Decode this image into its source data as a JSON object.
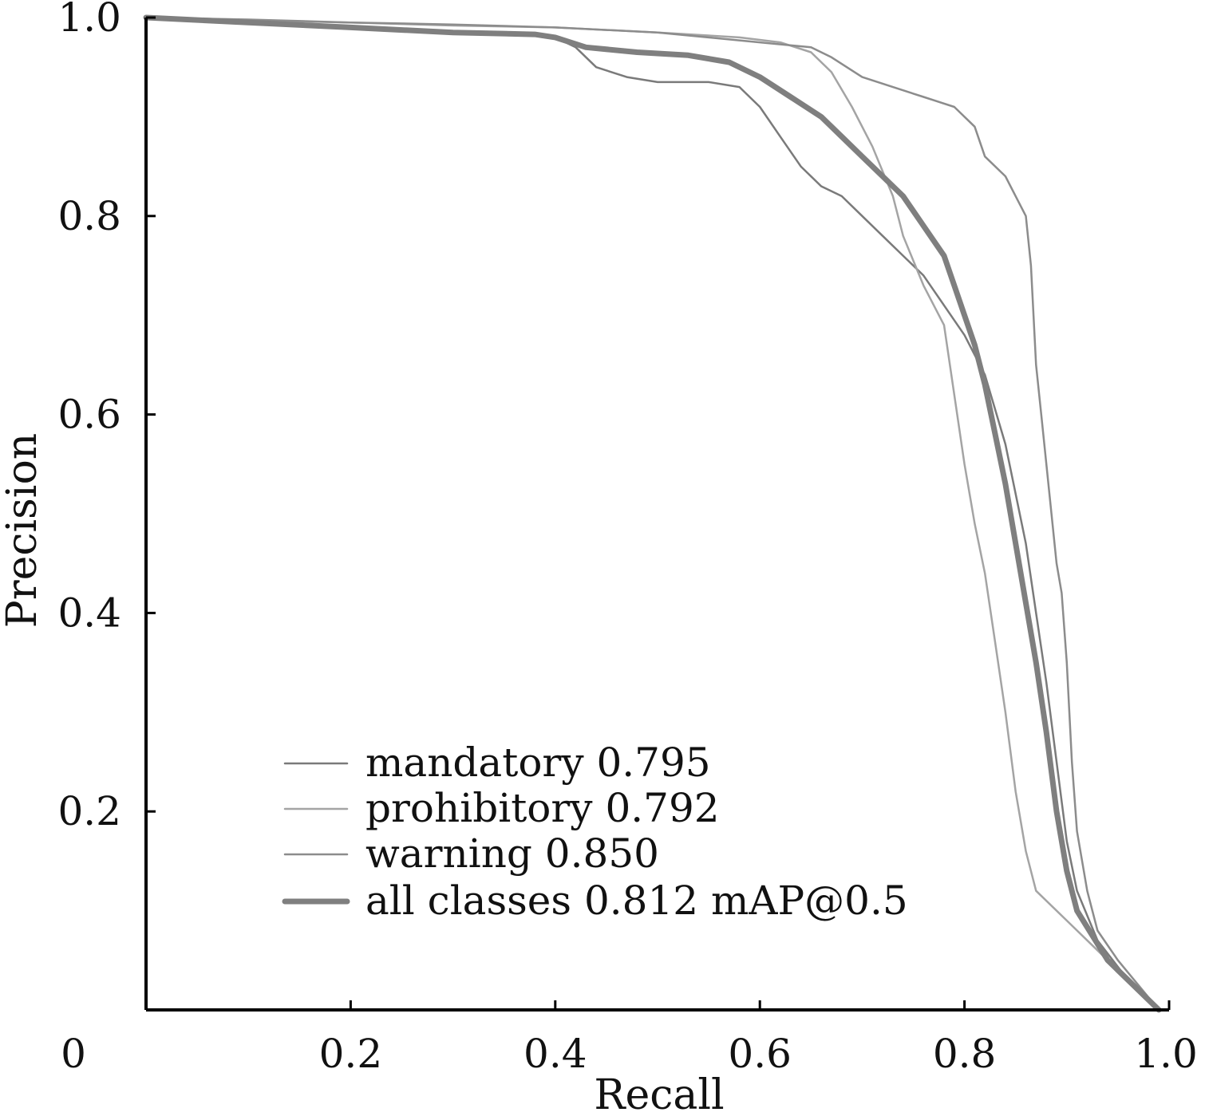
{
  "chart_data": {
    "type": "line",
    "xlabel": "Recall",
    "ylabel": "Precision",
    "xlim": [
      0,
      1.0
    ],
    "ylim": [
      0,
      1.0
    ],
    "x_ticks": [
      {
        "value": 0,
        "label": "0"
      },
      {
        "value": 0.2,
        "label": "0.2"
      },
      {
        "value": 0.4,
        "label": "0.4"
      },
      {
        "value": 0.6,
        "label": "0.6"
      },
      {
        "value": 0.8,
        "label": "0.8"
      },
      {
        "value": 1.0,
        "label": "1.0"
      }
    ],
    "y_ticks": [
      {
        "value": 0.2,
        "label": "0.2"
      },
      {
        "value": 0.4,
        "label": "0.4"
      },
      {
        "value": 0.6,
        "label": "0.6"
      },
      {
        "value": 0.8,
        "label": "0.8"
      },
      {
        "value": 1.0,
        "label": "1.0"
      }
    ],
    "grid": false,
    "legend_position": "bottom-left",
    "series": [
      {
        "name": "mandatory 0.795",
        "color": "#7a7a7a",
        "width": 2.5,
        "points": [
          [
            0.0,
            1.0
          ],
          [
            0.05,
            0.996
          ],
          [
            0.1,
            0.995
          ],
          [
            0.2,
            0.99
          ],
          [
            0.3,
            0.985
          ],
          [
            0.38,
            0.983
          ],
          [
            0.4,
            0.98
          ],
          [
            0.42,
            0.97
          ],
          [
            0.44,
            0.95
          ],
          [
            0.47,
            0.94
          ],
          [
            0.5,
            0.935
          ],
          [
            0.55,
            0.935
          ],
          [
            0.58,
            0.93
          ],
          [
            0.6,
            0.91
          ],
          [
            0.62,
            0.88
          ],
          [
            0.64,
            0.85
          ],
          [
            0.66,
            0.83
          ],
          [
            0.68,
            0.82
          ],
          [
            0.7,
            0.8
          ],
          [
            0.72,
            0.78
          ],
          [
            0.74,
            0.76
          ],
          [
            0.76,
            0.74
          ],
          [
            0.78,
            0.71
          ],
          [
            0.8,
            0.68
          ],
          [
            0.82,
            0.64
          ],
          [
            0.84,
            0.57
          ],
          [
            0.86,
            0.47
          ],
          [
            0.87,
            0.4
          ],
          [
            0.88,
            0.33
          ],
          [
            0.89,
            0.25
          ],
          [
            0.9,
            0.17
          ],
          [
            0.91,
            0.12
          ],
          [
            0.93,
            0.07
          ],
          [
            0.96,
            0.03
          ],
          [
            0.99,
            0.0
          ]
        ]
      },
      {
        "name": "prohibitory 0.792",
        "color": "#a4a4a4",
        "width": 2.5,
        "points": [
          [
            0.0,
            1.0
          ],
          [
            0.1,
            0.997
          ],
          [
            0.2,
            0.995
          ],
          [
            0.3,
            0.992
          ],
          [
            0.4,
            0.99
          ],
          [
            0.5,
            0.985
          ],
          [
            0.58,
            0.98
          ],
          [
            0.62,
            0.975
          ],
          [
            0.65,
            0.965
          ],
          [
            0.67,
            0.945
          ],
          [
            0.69,
            0.91
          ],
          [
            0.71,
            0.87
          ],
          [
            0.73,
            0.82
          ],
          [
            0.74,
            0.78
          ],
          [
            0.76,
            0.73
          ],
          [
            0.78,
            0.69
          ],
          [
            0.79,
            0.62
          ],
          [
            0.8,
            0.55
          ],
          [
            0.81,
            0.49
          ],
          [
            0.82,
            0.44
          ],
          [
            0.83,
            0.37
          ],
          [
            0.84,
            0.3
          ],
          [
            0.85,
            0.22
          ],
          [
            0.86,
            0.16
          ],
          [
            0.87,
            0.12
          ],
          [
            0.9,
            0.09
          ],
          [
            0.94,
            0.05
          ],
          [
            0.99,
            0.0
          ]
        ]
      },
      {
        "name": "warning 0.850",
        "color": "#8c8c8c",
        "width": 2.5,
        "points": [
          [
            0.0,
            1.0
          ],
          [
            0.1,
            0.998
          ],
          [
            0.2,
            0.995
          ],
          [
            0.3,
            0.993
          ],
          [
            0.4,
            0.99
          ],
          [
            0.5,
            0.985
          ],
          [
            0.6,
            0.975
          ],
          [
            0.65,
            0.97
          ],
          [
            0.67,
            0.96
          ],
          [
            0.7,
            0.94
          ],
          [
            0.73,
            0.93
          ],
          [
            0.76,
            0.92
          ],
          [
            0.79,
            0.91
          ],
          [
            0.81,
            0.89
          ],
          [
            0.82,
            0.86
          ],
          [
            0.84,
            0.84
          ],
          [
            0.85,
            0.82
          ],
          [
            0.86,
            0.8
          ],
          [
            0.865,
            0.75
          ],
          [
            0.87,
            0.65
          ],
          [
            0.875,
            0.6
          ],
          [
            0.88,
            0.55
          ],
          [
            0.885,
            0.5
          ],
          [
            0.89,
            0.45
          ],
          [
            0.895,
            0.42
          ],
          [
            0.9,
            0.35
          ],
          [
            0.905,
            0.25
          ],
          [
            0.91,
            0.18
          ],
          [
            0.92,
            0.12
          ],
          [
            0.93,
            0.08
          ],
          [
            0.95,
            0.05
          ],
          [
            0.99,
            0.0
          ]
        ]
      },
      {
        "name": "all classes 0.812 mAP@0.5",
        "color": "#7f7f7f",
        "width": 7,
        "points": [
          [
            0.0,
            1.0
          ],
          [
            0.1,
            0.995
          ],
          [
            0.2,
            0.99
          ],
          [
            0.3,
            0.985
          ],
          [
            0.38,
            0.983
          ],
          [
            0.4,
            0.98
          ],
          [
            0.43,
            0.97
          ],
          [
            0.48,
            0.965
          ],
          [
            0.53,
            0.962
          ],
          [
            0.57,
            0.955
          ],
          [
            0.6,
            0.94
          ],
          [
            0.63,
            0.92
          ],
          [
            0.66,
            0.9
          ],
          [
            0.68,
            0.88
          ],
          [
            0.7,
            0.86
          ],
          [
            0.72,
            0.84
          ],
          [
            0.74,
            0.82
          ],
          [
            0.76,
            0.79
          ],
          [
            0.78,
            0.76
          ],
          [
            0.79,
            0.73
          ],
          [
            0.8,
            0.7
          ],
          [
            0.81,
            0.67
          ],
          [
            0.82,
            0.63
          ],
          [
            0.83,
            0.58
          ],
          [
            0.84,
            0.53
          ],
          [
            0.85,
            0.47
          ],
          [
            0.86,
            0.41
          ],
          [
            0.87,
            0.35
          ],
          [
            0.88,
            0.28
          ],
          [
            0.89,
            0.2
          ],
          [
            0.9,
            0.14
          ],
          [
            0.91,
            0.1
          ],
          [
            0.94,
            0.05
          ],
          [
            0.99,
            0.0
          ]
        ]
      }
    ]
  }
}
